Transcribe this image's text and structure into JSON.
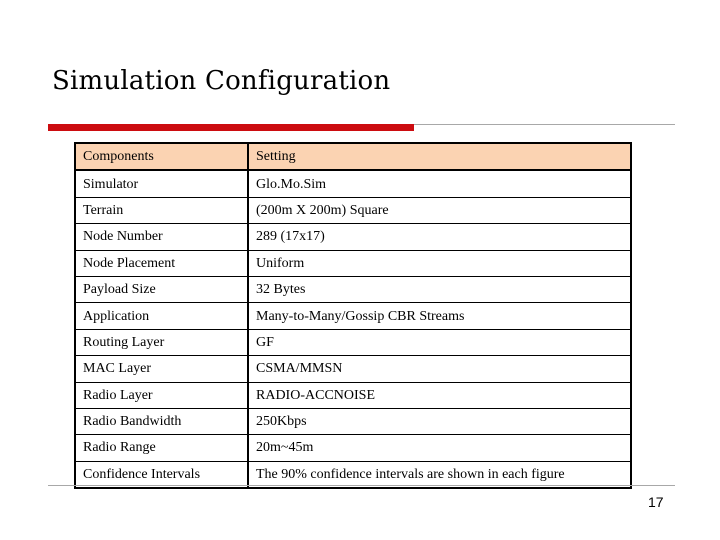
{
  "slide": {
    "title": "Simulation  Configuration",
    "page_number": "17"
  },
  "table": {
    "header": [
      "Components",
      "Setting"
    ],
    "rows": [
      [
        "Simulator",
        "Glo.Mo.Sim"
      ],
      [
        "Terrain",
        "(200m X 200m) Square"
      ],
      [
        "Node Number",
        "289  (17x17)"
      ],
      [
        "Node Placement",
        "Uniform"
      ],
      [
        "Payload Size",
        "32 Bytes"
      ],
      [
        "Application",
        "Many-to-Many/Gossip CBR Streams"
      ],
      [
        "Routing Layer",
        "GF"
      ],
      [
        "MAC Layer",
        "CSMA/MMSN"
      ],
      [
        "Radio Layer",
        "RADIO-ACCNOISE"
      ],
      [
        "Radio Bandwidth",
        "250Kbps"
      ],
      [
        "Radio Range",
        "20m~45m"
      ],
      [
        "Confidence Intervals",
        "The 90% confidence intervals are shown in each figure"
      ]
    ]
  },
  "colors": {
    "accent_bar": "#cc0c10",
    "header_fill": "#fbd3b2",
    "rule_grey": "#a8a8a8"
  }
}
